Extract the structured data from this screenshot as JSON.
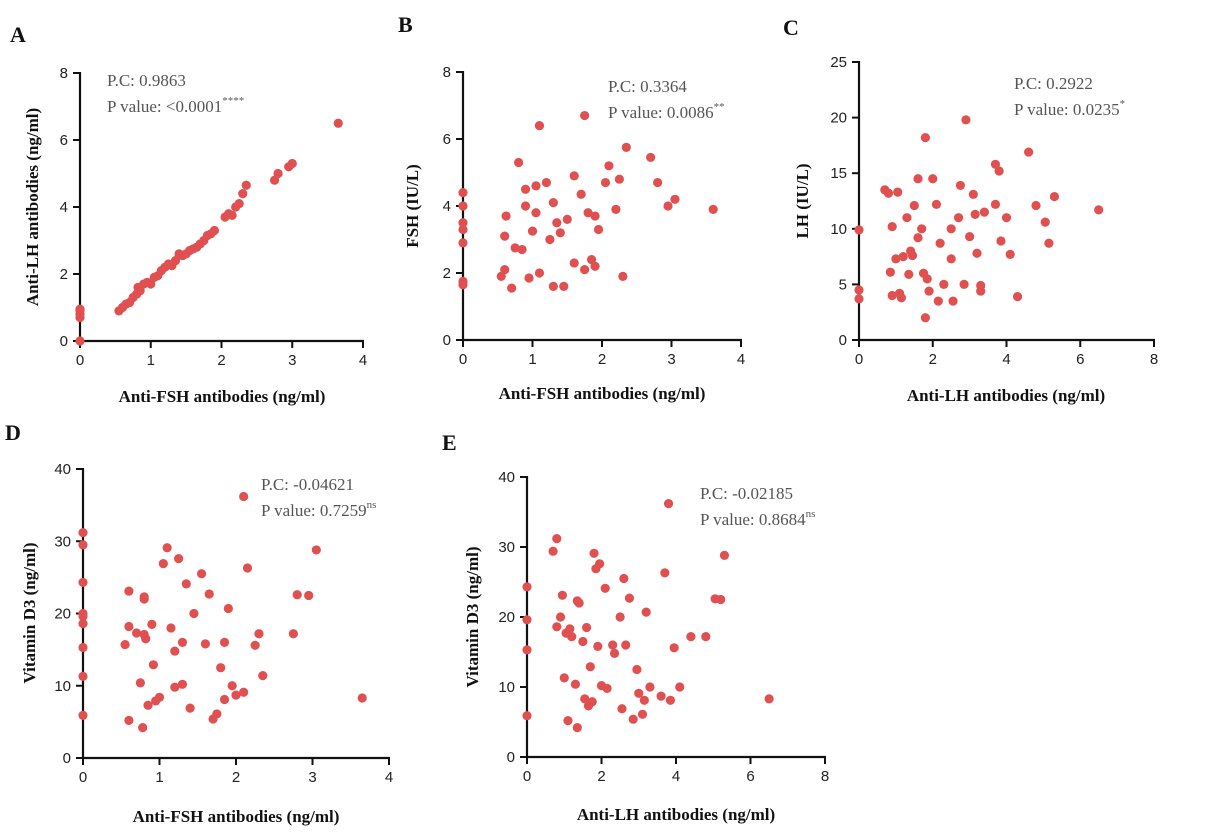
{
  "chart_data": [
    {
      "panel": "A",
      "type": "scatter",
      "xlabel": "Anti-FSH antibodies (ng/ml)",
      "ylabel": "Anti-LH antibodies (ng/ml)",
      "xlim": [
        0,
        4
      ],
      "ylim": [
        0,
        8
      ],
      "xticks": [
        "0",
        "1",
        "2",
        "3",
        "4"
      ],
      "yticks": [
        "0",
        "2",
        "4",
        "6",
        "8"
      ],
      "annotation": {
        "pc": "P.C: 0.9863",
        "p": "P value: <0.0001",
        "sig": "****"
      },
      "color": "#e05050",
      "points": [
        [
          0,
          0
        ],
        [
          0,
          0.7
        ],
        [
          0,
          0.8
        ],
        [
          0,
          0.9
        ],
        [
          0,
          0.95
        ],
        [
          0.55,
          0.9
        ],
        [
          0.6,
          1.0
        ],
        [
          0.65,
          1.1
        ],
        [
          0.7,
          1.15
        ],
        [
          0.75,
          1.3
        ],
        [
          0.8,
          1.4
        ],
        [
          0.85,
          1.5
        ],
        [
          0.82,
          1.6
        ],
        [
          0.9,
          1.7
        ],
        [
          0.95,
          1.75
        ],
        [
          1.0,
          1.7
        ],
        [
          1.05,
          1.9
        ],
        [
          1.1,
          1.95
        ],
        [
          1.15,
          2.1
        ],
        [
          1.2,
          2.2
        ],
        [
          1.25,
          2.3
        ],
        [
          1.3,
          2.25
        ],
        [
          1.35,
          2.4
        ],
        [
          1.4,
          2.6
        ],
        [
          1.45,
          2.55
        ],
        [
          1.5,
          2.6
        ],
        [
          1.55,
          2.7
        ],
        [
          1.6,
          2.75
        ],
        [
          1.65,
          2.8
        ],
        [
          1.7,
          2.9
        ],
        [
          1.75,
          3.0
        ],
        [
          1.8,
          3.15
        ],
        [
          1.85,
          3.2
        ],
        [
          1.9,
          3.3
        ],
        [
          2.05,
          3.7
        ],
        [
          2.1,
          3.8
        ],
        [
          2.15,
          3.75
        ],
        [
          2.2,
          4.0
        ],
        [
          2.25,
          4.1
        ],
        [
          2.3,
          4.4
        ],
        [
          2.35,
          4.65
        ],
        [
          2.75,
          4.8
        ],
        [
          2.8,
          5.0
        ],
        [
          2.95,
          5.2
        ],
        [
          3.0,
          5.3
        ],
        [
          3.65,
          6.5
        ]
      ]
    },
    {
      "panel": "B",
      "type": "scatter",
      "xlabel": "Anti-FSH antibodies (ng/ml)",
      "ylabel": "FSH (IU/L)",
      "xlim": [
        0,
        4
      ],
      "ylim": [
        0,
        8
      ],
      "xticks": [
        "0",
        "1",
        "2",
        "3",
        "4"
      ],
      "yticks": [
        "0",
        "2",
        "4",
        "6",
        "8"
      ],
      "annotation": {
        "pc": "P.C: 0.3364",
        "p": "P value: 0.0086",
        "sig": "**"
      },
      "color": "#e05050",
      "points": [
        [
          0,
          1.65
        ],
        [
          0,
          1.75
        ],
        [
          0,
          2.9
        ],
        [
          0,
          3.3
        ],
        [
          0,
          3.5
        ],
        [
          0,
          4.0
        ],
        [
          0,
          4.4
        ],
        [
          0.55,
          1.9
        ],
        [
          0.6,
          2.1
        ],
        [
          0.6,
          3.1
        ],
        [
          0.62,
          3.7
        ],
        [
          0.7,
          1.55
        ],
        [
          0.75,
          2.75
        ],
        [
          0.8,
          5.3
        ],
        [
          0.85,
          2.7
        ],
        [
          0.9,
          4.5
        ],
        [
          0.9,
          4.0
        ],
        [
          0.95,
          1.85
        ],
        [
          1.0,
          3.25
        ],
        [
          1.05,
          4.6
        ],
        [
          1.05,
          3.8
        ],
        [
          1.1,
          6.4
        ],
        [
          1.1,
          2.0
        ],
        [
          1.2,
          4.7
        ],
        [
          1.25,
          3.0
        ],
        [
          1.3,
          4.1
        ],
        [
          1.3,
          1.6
        ],
        [
          1.35,
          3.5
        ],
        [
          1.4,
          3.2
        ],
        [
          1.45,
          1.6
        ],
        [
          1.5,
          3.6
        ],
        [
          1.6,
          2.3
        ],
        [
          1.6,
          4.9
        ],
        [
          1.7,
          4.35
        ],
        [
          1.75,
          6.7
        ],
        [
          1.75,
          2.1
        ],
        [
          1.8,
          3.8
        ],
        [
          1.85,
          2.4
        ],
        [
          1.9,
          2.2
        ],
        [
          1.9,
          3.7
        ],
        [
          1.95,
          3.3
        ],
        [
          2.05,
          4.7
        ],
        [
          2.1,
          5.2
        ],
        [
          2.2,
          3.9
        ],
        [
          2.25,
          4.8
        ],
        [
          2.3,
          1.9
        ],
        [
          2.35,
          5.75
        ],
        [
          2.7,
          5.45
        ],
        [
          2.8,
          4.7
        ],
        [
          2.95,
          4.0
        ],
        [
          3.05,
          4.2
        ],
        [
          3.6,
          3.9
        ]
      ]
    },
    {
      "panel": "C",
      "type": "scatter",
      "xlabel": "Anti-LH antibodies (ng/ml)",
      "ylabel": "LH (IU/L)",
      "xlim": [
        0,
        8
      ],
      "ylim": [
        0,
        25
      ],
      "xticks": [
        "0",
        "2",
        "4",
        "6",
        "8"
      ],
      "yticks": [
        "0",
        "5",
        "10",
        "15",
        "20",
        "25"
      ],
      "annotation": {
        "pc": "P.C: 0.2922",
        "p": "P value: 0.0235",
        "sig": "*"
      },
      "color": "#e05050",
      "points": [
        [
          0,
          9.9
        ],
        [
          0,
          4.5
        ],
        [
          0,
          3.7
        ],
        [
          0.7,
          13.5
        ],
        [
          0.8,
          13.2
        ],
        [
          0.9,
          10.2
        ],
        [
          0.85,
          6.1
        ],
        [
          0.9,
          4.0
        ],
        [
          1.0,
          7.3
        ],
        [
          1.05,
          13.3
        ],
        [
          1.1,
          4.2
        ],
        [
          1.15,
          3.8
        ],
        [
          1.2,
          7.5
        ],
        [
          1.3,
          11.0
        ],
        [
          1.35,
          5.9
        ],
        [
          1.4,
          8.0
        ],
        [
          1.45,
          7.6
        ],
        [
          1.5,
          12.1
        ],
        [
          1.6,
          9.2
        ],
        [
          1.6,
          14.5
        ],
        [
          1.7,
          10.0
        ],
        [
          1.75,
          6.0
        ],
        [
          1.8,
          2.0
        ],
        [
          1.8,
          18.2
        ],
        [
          1.85,
          5.5
        ],
        [
          1.9,
          4.4
        ],
        [
          2.0,
          14.5
        ],
        [
          2.1,
          12.2
        ],
        [
          2.15,
          3.5
        ],
        [
          2.2,
          8.7
        ],
        [
          2.3,
          5.0
        ],
        [
          2.5,
          7.3
        ],
        [
          2.5,
          10.0
        ],
        [
          2.55,
          3.5
        ],
        [
          2.7,
          11.0
        ],
        [
          2.75,
          13.9
        ],
        [
          2.85,
          5.0
        ],
        [
          2.9,
          19.8
        ],
        [
          3.0,
          9.3
        ],
        [
          3.1,
          13.1
        ],
        [
          3.15,
          11.3
        ],
        [
          3.2,
          7.8
        ],
        [
          3.3,
          4.4
        ],
        [
          3.3,
          4.9
        ],
        [
          3.4,
          11.5
        ],
        [
          3.7,
          12.2
        ],
        [
          3.7,
          15.8
        ],
        [
          3.8,
          15.2
        ],
        [
          3.85,
          8.9
        ],
        [
          4.0,
          11.0
        ],
        [
          4.1,
          7.7
        ],
        [
          4.3,
          3.9
        ],
        [
          4.6,
          16.9
        ],
        [
          4.8,
          12.1
        ],
        [
          5.05,
          10.6
        ],
        [
          5.15,
          8.7
        ],
        [
          5.3,
          12.9
        ],
        [
          6.5,
          11.7
        ]
      ]
    },
    {
      "panel": "D",
      "type": "scatter",
      "xlabel": "Anti-FSH antibodies (ng/ml)",
      "ylabel": "Vitamin D3 (ng/ml)",
      "xlim": [
        0,
        4
      ],
      "ylim": [
        0,
        40
      ],
      "xticks": [
        "0",
        "1",
        "2",
        "3",
        "4"
      ],
      "yticks": [
        "0",
        "10",
        "20",
        "30",
        "40"
      ],
      "annotation": {
        "pc": "P.C: -0.04621",
        "p": "P value: 0.7259",
        "sig": "ns"
      },
      "color": "#e05050",
      "points": [
        [
          0,
          31.2
        ],
        [
          0,
          29.5
        ],
        [
          0,
          24.3
        ],
        [
          0,
          20.0
        ],
        [
          0,
          19.6
        ],
        [
          0,
          18.6
        ],
        [
          0,
          15.3
        ],
        [
          0,
          11.3
        ],
        [
          0,
          5.9
        ],
        [
          0.55,
          15.7
        ],
        [
          0.6,
          23.1
        ],
        [
          0.6,
          18.2
        ],
        [
          0.6,
          5.2
        ],
        [
          0.7,
          17.3
        ],
        [
          0.75,
          10.4
        ],
        [
          0.78,
          4.2
        ],
        [
          0.8,
          22.3
        ],
        [
          0.8,
          22.0
        ],
        [
          0.8,
          17.1
        ],
        [
          0.82,
          16.5
        ],
        [
          0.85,
          7.3
        ],
        [
          0.9,
          18.5
        ],
        [
          0.92,
          12.9
        ],
        [
          0.95,
          7.9
        ],
        [
          1.0,
          8.4
        ],
        [
          1.05,
          26.9
        ],
        [
          1.1,
          29.1
        ],
        [
          1.15,
          18.0
        ],
        [
          1.2,
          14.8
        ],
        [
          1.2,
          9.8
        ],
        [
          1.25,
          27.6
        ],
        [
          1.3,
          16.0
        ],
        [
          1.3,
          10.2
        ],
        [
          1.35,
          24.1
        ],
        [
          1.4,
          6.9
        ],
        [
          1.45,
          20.0
        ],
        [
          1.55,
          25.5
        ],
        [
          1.6,
          15.8
        ],
        [
          1.65,
          22.7
        ],
        [
          1.7,
          5.4
        ],
        [
          1.75,
          6.1
        ],
        [
          1.8,
          12.5
        ],
        [
          1.85,
          16.0
        ],
        [
          1.85,
          8.1
        ],
        [
          1.9,
          20.7
        ],
        [
          1.95,
          10.0
        ],
        [
          2.0,
          8.7
        ],
        [
          2.1,
          36.2
        ],
        [
          2.1,
          9.1
        ],
        [
          2.15,
          26.3
        ],
        [
          2.25,
          15.6
        ],
        [
          2.3,
          17.2
        ],
        [
          2.35,
          11.4
        ],
        [
          2.75,
          17.2
        ],
        [
          2.8,
          22.6
        ],
        [
          2.95,
          22.5
        ],
        [
          3.05,
          28.8
        ],
        [
          3.65,
          8.3
        ]
      ]
    },
    {
      "panel": "E",
      "type": "scatter",
      "xlabel": "Anti-LH antibodies (ng/ml)",
      "ylabel": "Vitamin D3 (ng/ml)",
      "xlim": [
        0,
        8
      ],
      "ylim": [
        0,
        40
      ],
      "xticks": [
        "0",
        "2",
        "4",
        "6",
        "8"
      ],
      "yticks": [
        "0",
        "10",
        "20",
        "30",
        "40"
      ],
      "annotation": {
        "pc": "P.C: -0.02185",
        "p": "P value: 0.8684",
        "sig": "ns"
      },
      "color": "#e05050",
      "points": [
        [
          0,
          24.3
        ],
        [
          0,
          19.6
        ],
        [
          0,
          15.3
        ],
        [
          0,
          5.9
        ],
        [
          0.7,
          29.4
        ],
        [
          0.8,
          31.2
        ],
        [
          0.8,
          18.6
        ],
        [
          0.9,
          20.0
        ],
        [
          0.95,
          23.1
        ],
        [
          1.0,
          11.3
        ],
        [
          1.05,
          17.7
        ],
        [
          1.1,
          5.2
        ],
        [
          1.15,
          18.3
        ],
        [
          1.2,
          17.2
        ],
        [
          1.3,
          10.4
        ],
        [
          1.35,
          22.3
        ],
        [
          1.4,
          22.0
        ],
        [
          1.35,
          4.2
        ],
        [
          1.5,
          16.5
        ],
        [
          1.55,
          8.3
        ],
        [
          1.6,
          18.5
        ],
        [
          1.65,
          7.3
        ],
        [
          1.7,
          12.9
        ],
        [
          1.75,
          7.9
        ],
        [
          1.8,
          29.1
        ],
        [
          1.85,
          26.9
        ],
        [
          1.9,
          15.8
        ],
        [
          1.95,
          27.6
        ],
        [
          2.0,
          10.2
        ],
        [
          2.1,
          24.1
        ],
        [
          2.15,
          9.8
        ],
        [
          2.3,
          16.0
        ],
        [
          2.35,
          14.8
        ],
        [
          2.5,
          20.0
        ],
        [
          2.55,
          6.9
        ],
        [
          2.6,
          25.5
        ],
        [
          2.65,
          16.0
        ],
        [
          2.75,
          22.7
        ],
        [
          2.85,
          5.4
        ],
        [
          2.95,
          12.5
        ],
        [
          3.0,
          9.1
        ],
        [
          3.1,
          6.1
        ],
        [
          3.15,
          8.1
        ],
        [
          3.2,
          20.7
        ],
        [
          3.3,
          10.0
        ],
        [
          3.6,
          8.7
        ],
        [
          3.7,
          26.3
        ],
        [
          3.8,
          36.2
        ],
        [
          3.85,
          8.1
        ],
        [
          3.95,
          15.6
        ],
        [
          4.1,
          10.0
        ],
        [
          4.4,
          17.2
        ],
        [
          4.8,
          17.2
        ],
        [
          5.05,
          22.6
        ],
        [
          5.2,
          22.5
        ],
        [
          5.3,
          28.8
        ],
        [
          6.5,
          8.3
        ]
      ]
    }
  ]
}
